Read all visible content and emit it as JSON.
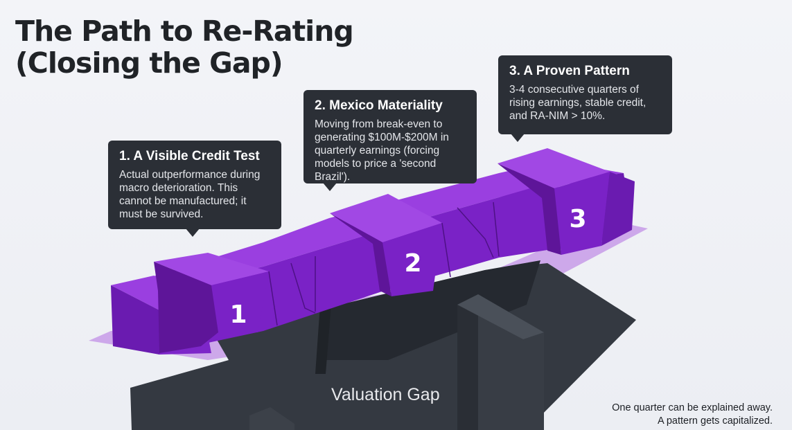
{
  "title": {
    "line1": "The Path to Re-Rating",
    "line2": "(Closing the Gap)"
  },
  "callouts": [
    {
      "heading": "1. A Visible Credit Test",
      "body": "Actual outperformance during macro deterioration. This cannot be manufactured; it must be survived."
    },
    {
      "heading": "2. Mexico Materiality",
      "body": "Moving from break-even to generating $100M-$200M in quarterly earnings (forcing models to price a 'second Brazil')."
    },
    {
      "heading": "3. A Proven Pattern",
      "body": "3-4 consecutive quarters of rising earnings, stable credit, and RA-NIM > 10%."
    }
  ],
  "markers": [
    "1",
    "2",
    "3"
  ],
  "gap_label": "Valuation Gap",
  "footnote": {
    "line1": "One quarter can be explained away.",
    "line2": "A pattern gets capitalized."
  },
  "colors": {
    "bridge_front": "#7a22c6",
    "bridge_top": "#9a3fe0",
    "bridge_side": "#5b1596",
    "pit": "#2f343c",
    "shadow": "#c79be8",
    "callout_bg": "#2b2f36"
  }
}
